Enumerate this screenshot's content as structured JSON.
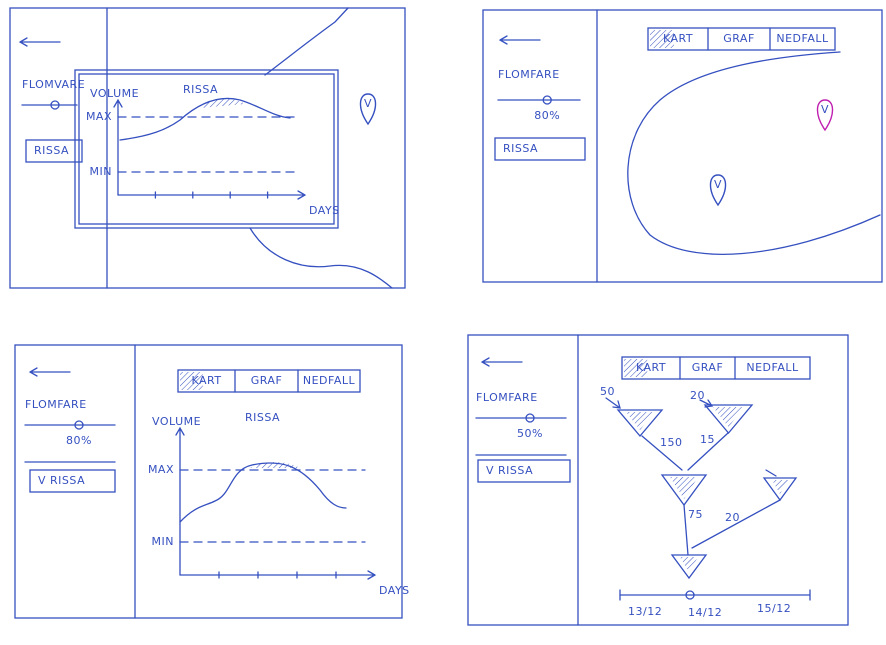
{
  "panels": [
    {
      "sidebar": {
        "title": "FLOMVARE",
        "station": "RISSA"
      },
      "graph": {
        "y_label": "VOLUME",
        "title": "RISSA",
        "max": "MAX",
        "min": "MIN",
        "x_label": "DAYS"
      },
      "pins": [
        "V"
      ]
    },
    {
      "sidebar": {
        "title": "FLOMFARE",
        "slider": "80%",
        "station": "RISSA"
      },
      "tabs": [
        "KART",
        "GRAF",
        "NEDFALL"
      ],
      "pins": [
        "V",
        "V"
      ]
    },
    {
      "sidebar": {
        "title": "FLOMFARE",
        "slider": "80%",
        "station": "V RISSA"
      },
      "tabs": [
        "KART",
        "GRAF",
        "NEDFALL"
      ],
      "graph": {
        "y_label": "VOLUME",
        "title": "RISSA",
        "max": "MAX",
        "min": "MIN",
        "x_label": "DAYS"
      }
    },
    {
      "sidebar": {
        "title": "FLOMFARE",
        "slider": "50%",
        "station": "V RISSA"
      },
      "tabs": [
        "KART",
        "GRAF",
        "NEDFALL"
      ],
      "flow": {
        "inputs": [
          "50",
          "20"
        ],
        "edges": [
          "150",
          "15",
          "75",
          "20"
        ]
      },
      "timeline": [
        "13/12",
        "14/12",
        "15/12"
      ]
    }
  ]
}
